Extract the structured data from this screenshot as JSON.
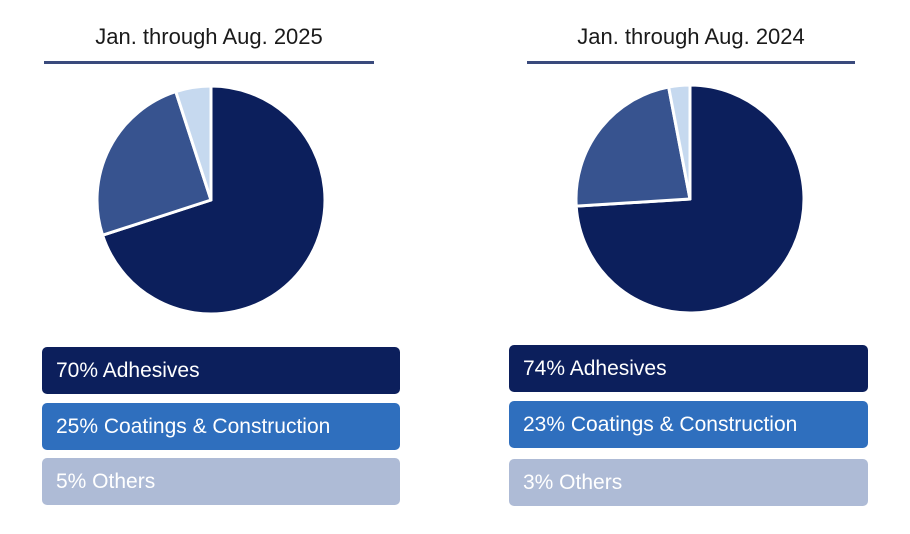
{
  "chart_data": [
    {
      "type": "pie",
      "title": "Jan. through Aug. 2025",
      "slices": [
        {
          "label": "Adhesives",
          "value": 70,
          "text": "70% Adhesives",
          "color": "#0c1f5c",
          "legend_color": "#0c1f5c"
        },
        {
          "label": "Coatings & Construction",
          "value": 25,
          "text": "25% Coatings & Construction",
          "color": "#37538f",
          "legend_color": "#2f6fbe"
        },
        {
          "label": "Others",
          "value": 5,
          "text": "5% Others",
          "color": "#c6d9ef",
          "legend_color": "#aebbd6"
        }
      ]
    },
    {
      "type": "pie",
      "title": "Jan. through Aug. 2024",
      "slices": [
        {
          "label": "Adhesives",
          "value": 74,
          "text": "74% Adhesives",
          "color": "#0c1f5c",
          "legend_color": "#0c1f5c"
        },
        {
          "label": "Coatings & Construction",
          "value": 23,
          "text": "23% Coatings & Construction",
          "color": "#37538f",
          "legend_color": "#2f6fbe"
        },
        {
          "label": "Others",
          "value": 3,
          "text": "3% Others",
          "color": "#c6d9ef",
          "legend_color": "#aebbd6"
        }
      ]
    }
  ]
}
